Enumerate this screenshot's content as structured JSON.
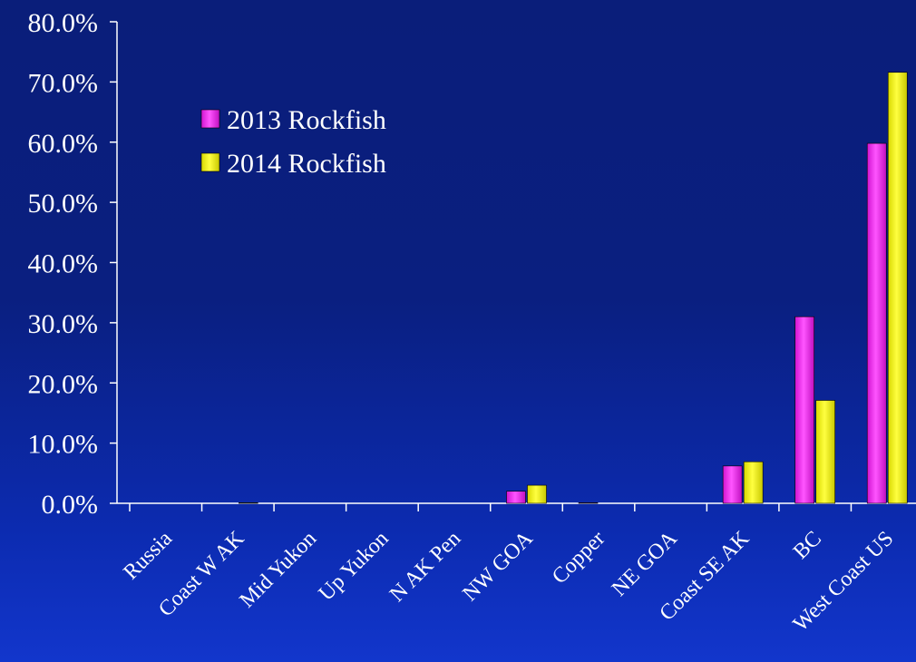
{
  "chart_data": {
    "type": "bar",
    "title": "",
    "xlabel": "",
    "ylabel": "",
    "ylim": [
      0,
      80
    ],
    "y_ticks": [
      "0.0%",
      "10.0%",
      "20.0%",
      "30.0%",
      "40.0%",
      "50.0%",
      "60.0%",
      "70.0%",
      "80.0%"
    ],
    "y_tick_values": [
      0,
      10,
      20,
      30,
      40,
      50,
      60,
      70,
      80
    ],
    "categories": [
      "Russia",
      "Coast W AK",
      "Mid Yukon",
      "Up Yukon",
      "N AK Pen",
      "NW GOA",
      "Copper",
      "NE GOA",
      "Coast SE AK",
      "BC",
      "West Coast US"
    ],
    "series": [
      {
        "name": "2013 Rockfish",
        "color": "#ff33ff",
        "values": [
          0,
          0,
          0,
          0,
          0,
          2.0,
          0.1,
          0,
          6.2,
          31.0,
          59.8
        ]
      },
      {
        "name": "2014 Rockfish",
        "color": "#ffff00",
        "values": [
          0,
          0.1,
          0,
          0,
          0,
          3.0,
          0,
          0,
          6.9,
          17.1,
          71.6
        ]
      }
    ],
    "legend_position": "top-left",
    "grid": false
  }
}
